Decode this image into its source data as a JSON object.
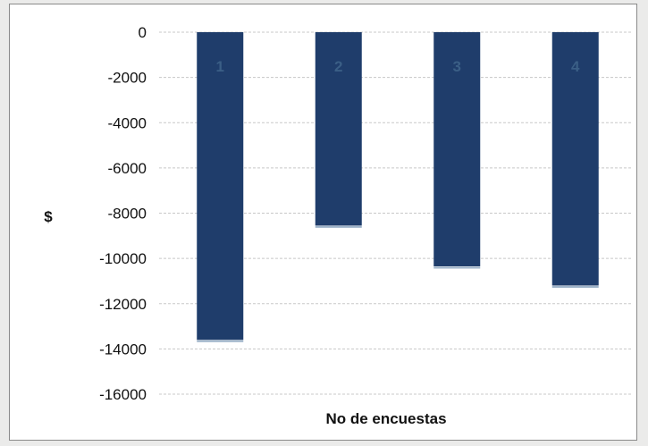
{
  "chart_data": {
    "type": "bar",
    "categories": [
      "1",
      "2",
      "3",
      "4"
    ],
    "values": [
      -13600,
      -8550,
      -10350,
      -11200
    ],
    "title": "",
    "xlabel": "No de encuestas",
    "ylabel": "$",
    "ylim": [
      -16000,
      0
    ],
    "yticks": [
      0,
      -2000,
      -4000,
      -6000,
      -8000,
      -10000,
      -12000,
      -14000,
      -16000
    ],
    "grid": true,
    "bar_color": "#1f3d6b",
    "data_labels": [
      "1",
      "2",
      "3",
      "4"
    ]
  }
}
